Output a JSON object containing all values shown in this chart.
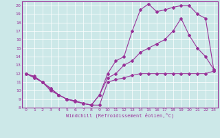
{
  "xlabel": "Windchill (Refroidissement éolien,°C)",
  "xlim": [
    -0.5,
    23.5
  ],
  "ylim": [
    8,
    20
  ],
  "xticks": [
    0,
    1,
    2,
    3,
    4,
    5,
    6,
    7,
    8,
    9,
    10,
    11,
    12,
    13,
    14,
    15,
    16,
    17,
    18,
    19,
    20,
    21,
    22,
    23
  ],
  "yticks": [
    8,
    9,
    10,
    11,
    12,
    13,
    14,
    15,
    16,
    17,
    18,
    19,
    20
  ],
  "bg_color": "#cce8e8",
  "line_color": "#993399",
  "line1_x": [
    0,
    1,
    2,
    3,
    4,
    5,
    6,
    7,
    8,
    9,
    10,
    11,
    12,
    13,
    14,
    15,
    16,
    17,
    18,
    19,
    20,
    21,
    22,
    23
  ],
  "line1_y": [
    12.0,
    11.5,
    11.0,
    10.0,
    9.5,
    9.0,
    8.7,
    8.5,
    8.3,
    8.3,
    11.0,
    11.3,
    11.5,
    11.8,
    12.0,
    12.0,
    12.0,
    12.0,
    12.0,
    12.0,
    12.0,
    12.0,
    12.0,
    12.3
  ],
  "line2_x": [
    0,
    1,
    2,
    3,
    4,
    5,
    6,
    7,
    8,
    9,
    10,
    11,
    12,
    13,
    14,
    15,
    16,
    17,
    18,
    19,
    20,
    21,
    22,
    23
  ],
  "line2_y": [
    12.0,
    11.6,
    11.0,
    10.3,
    9.5,
    9.0,
    8.8,
    8.5,
    8.3,
    9.5,
    11.5,
    12.0,
    13.0,
    13.5,
    14.5,
    15.0,
    15.5,
    16.0,
    17.0,
    18.5,
    16.5,
    15.0,
    14.0,
    12.5
  ],
  "line3_x": [
    0,
    1,
    2,
    3,
    4,
    5,
    6,
    7,
    8,
    9,
    10,
    11,
    12,
    13,
    14,
    15,
    16,
    17,
    18,
    19,
    20,
    21,
    22,
    23
  ],
  "line3_y": [
    12.0,
    11.7,
    11.0,
    10.2,
    9.5,
    9.0,
    8.8,
    8.5,
    8.3,
    9.5,
    12.0,
    13.5,
    14.0,
    17.0,
    19.5,
    20.2,
    19.3,
    19.5,
    19.8,
    20.0,
    20.0,
    19.0,
    18.5,
    12.5
  ],
  "marker": "D",
  "marker_size": 2.0,
  "linewidth": 0.8
}
